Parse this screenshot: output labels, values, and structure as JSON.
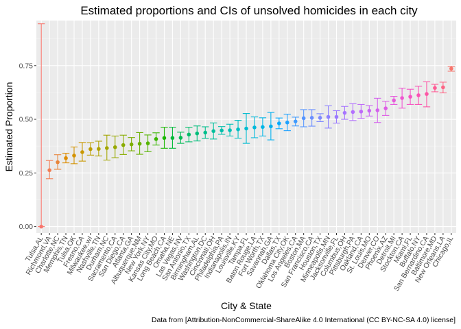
{
  "chart_data": {
    "type": "scatter",
    "title": "Estimated proportions and CIs of unsolved homicides in each city",
    "xlabel": "City & State",
    "ylabel": "Estimated Proportion",
    "caption": "Data from [Attribution-NonCommercial-ShareAlike 4.0 International (CC BY-NC-SA 4.0) license]",
    "ylim": [
      -0.03,
      0.96
    ],
    "yticks": [
      "0.00",
      "0.25",
      "0.50",
      "0.75"
    ],
    "ytick_values": [
      0,
      0.25,
      0.5,
      0.75
    ],
    "grid": true,
    "legend": "none",
    "points": [
      {
        "city": "Tulsa,AL",
        "estimate": 0.0,
        "low": 0.0,
        "high": 0.945,
        "color": "#F8766D"
      },
      {
        "city": "Richmond,VA",
        "estimate": 0.263,
        "low": 0.223,
        "high": 0.308,
        "color": "#F27D53"
      },
      {
        "city": "Charlotte,NC",
        "estimate": 0.3,
        "low": 0.267,
        "high": 0.335,
        "color": "#E8853A"
      },
      {
        "city": "Memphis,TN",
        "estimate": 0.319,
        "low": 0.297,
        "high": 0.342,
        "color": "#DE8C00"
      },
      {
        "city": "Tulsa,OK",
        "estimate": 0.331,
        "low": 0.293,
        "high": 0.371,
        "color": "#D39200"
      },
      {
        "city": "Fresno,CA",
        "estimate": 0.347,
        "low": 0.305,
        "high": 0.392,
        "color": "#C99800"
      },
      {
        "city": "Milwaukee,wI",
        "estimate": 0.361,
        "low": 0.333,
        "high": 0.391,
        "color": "#BC9D00"
      },
      {
        "city": "Nashville,TN",
        "estimate": 0.362,
        "low": 0.329,
        "high": 0.398,
        "color": "#B0A200"
      },
      {
        "city": "Durham,NC",
        "estimate": 0.366,
        "low": 0.31,
        "high": 0.426,
        "color": "#A3A500"
      },
      {
        "city": "Sacramento,CA",
        "estimate": 0.37,
        "low": 0.321,
        "high": 0.422,
        "color": "#97A800"
      },
      {
        "city": "San Diego,CA",
        "estimate": 0.38,
        "low": 0.336,
        "high": 0.426,
        "color": "#89AC00"
      },
      {
        "city": "Atlanta,GA",
        "estimate": 0.383,
        "low": 0.353,
        "high": 0.415,
        "color": "#7CAE00"
      },
      {
        "city": "Albuquerque,NM",
        "estimate": 0.386,
        "low": 0.337,
        "high": 0.438,
        "color": "#6AB100"
      },
      {
        "city": "New York,NY",
        "estimate": 0.388,
        "low": 0.349,
        "high": 0.427,
        "color": "#55B400"
      },
      {
        "city": "Kansas City,MO",
        "estimate": 0.408,
        "low": 0.38,
        "high": 0.437,
        "color": "#39B600"
      },
      {
        "city": "Long Beach,CA",
        "estimate": 0.413,
        "low": 0.365,
        "high": 0.463,
        "color": "#1AB800"
      },
      {
        "city": "Omaha,NE",
        "estimate": 0.413,
        "low": 0.365,
        "high": 0.463,
        "color": "#00BA38"
      },
      {
        "city": "Las Vegas,NV",
        "estimate": 0.414,
        "low": 0.388,
        "high": 0.44,
        "color": "#00BB52"
      },
      {
        "city": "San Antonio,TX",
        "estimate": 0.429,
        "low": 0.395,
        "high": 0.463,
        "color": "#00BC68"
      },
      {
        "city": "Birmingham,AL",
        "estimate": 0.434,
        "low": 0.399,
        "high": 0.469,
        "color": "#00BD7B"
      },
      {
        "city": "Washington,DC",
        "estimate": 0.438,
        "low": 0.411,
        "high": 0.465,
        "color": "#00BE8C"
      },
      {
        "city": "Cincinnati,OH",
        "estimate": 0.445,
        "low": 0.408,
        "high": 0.483,
        "color": "#00BF9C"
      },
      {
        "city": "Philadelphia,PA",
        "estimate": 0.448,
        "low": 0.43,
        "high": 0.466,
        "color": "#00BFAB"
      },
      {
        "city": "Indianapolis,IN",
        "estimate": 0.449,
        "low": 0.422,
        "high": 0.477,
        "color": "#00C0B8"
      },
      {
        "city": "Louisville,KY",
        "estimate": 0.453,
        "low": 0.412,
        "high": 0.495,
        "color": "#00BFC4"
      },
      {
        "city": "Tampa,FL",
        "estimate": 0.457,
        "low": 0.388,
        "high": 0.527,
        "color": "#00BCD0"
      },
      {
        "city": "Baton Rouge,LA",
        "estimate": 0.462,
        "low": 0.414,
        "high": 0.511,
        "color": "#00B9DB"
      },
      {
        "city": "Fort Worth,TX",
        "estimate": 0.464,
        "low": 0.422,
        "high": 0.507,
        "color": "#00B5E6"
      },
      {
        "city": "Savannah,GA",
        "estimate": 0.467,
        "low": 0.404,
        "high": 0.532,
        "color": "#00B0F0"
      },
      {
        "city": "Dallas,TX",
        "estimate": 0.481,
        "low": 0.456,
        "high": 0.506,
        "color": "#00A9FF"
      },
      {
        "city": "Oklahoma City,OK",
        "estimate": 0.485,
        "low": 0.447,
        "high": 0.524,
        "color": "#1FA2FF"
      },
      {
        "city": "Los Angeles,CA",
        "estimate": 0.49,
        "low": 0.469,
        "high": 0.51,
        "color": "#3F9BFF"
      },
      {
        "city": "Boston,MA",
        "estimate": 0.505,
        "low": 0.465,
        "high": 0.545,
        "color": "#5595FF"
      },
      {
        "city": "San Francisco,CA",
        "estimate": 0.507,
        "low": 0.468,
        "high": 0.545,
        "color": "#6A8EFF"
      },
      {
        "city": "Houston,TX",
        "estimate": 0.507,
        "low": 0.489,
        "high": 0.526,
        "color": "#7C88FF"
      },
      {
        "city": "Minneapolis,MN",
        "estimate": 0.511,
        "low": 0.459,
        "high": 0.563,
        "color": "#8D81FF"
      },
      {
        "city": "Jacksonville,FL",
        "estimate": 0.511,
        "low": 0.482,
        "high": 0.54,
        "color": "#9B7BFF"
      },
      {
        "city": "Columbus,OH",
        "estimate": 0.53,
        "low": 0.5,
        "high": 0.56,
        "color": "#A775FF"
      },
      {
        "city": "Pittsburgh,PA",
        "estimate": 0.534,
        "low": 0.494,
        "high": 0.573,
        "color": "#B26FFE"
      },
      {
        "city": "Oakland,CA",
        "estimate": 0.536,
        "low": 0.504,
        "high": 0.569,
        "color": "#BE6AF9"
      },
      {
        "city": "St. Louis,MO",
        "estimate": 0.54,
        "low": 0.515,
        "high": 0.564,
        "color": "#C966F5"
      },
      {
        "city": "Denver,CO",
        "estimate": 0.542,
        "low": 0.485,
        "high": 0.598,
        "color": "#D462ED"
      },
      {
        "city": "Phoenix,AZ",
        "estimate": 0.551,
        "low": 0.518,
        "high": 0.584,
        "color": "#DE5FE5"
      },
      {
        "city": "Detroit,MI",
        "estimate": 0.588,
        "low": 0.569,
        "high": 0.607,
        "color": "#E65ADB"
      },
      {
        "city": "Stockton,CA",
        "estimate": 0.599,
        "low": 0.552,
        "high": 0.645,
        "color": "#EF56D0"
      },
      {
        "city": "Miami,FL",
        "estimate": 0.605,
        "low": 0.569,
        "high": 0.64,
        "color": "#F653C3"
      },
      {
        "city": "Buffalo,NY",
        "estimate": 0.612,
        "low": 0.569,
        "high": 0.654,
        "color": "#FA52B5"
      },
      {
        "city": "San Bernardino,CA",
        "estimate": 0.618,
        "low": 0.558,
        "high": 0.675,
        "color": "#FD56A5"
      },
      {
        "city": "Baltimore,MD",
        "estimate": 0.646,
        "low": 0.628,
        "high": 0.663,
        "color": "#FE5C95"
      },
      {
        "city": "New Orleans,LA",
        "estimate": 0.649,
        "low": 0.623,
        "high": 0.673,
        "color": "#FD6585"
      },
      {
        "city": "Chicago,IL",
        "estimate": 0.736,
        "low": 0.724,
        "high": 0.747,
        "color": "#F8766D"
      }
    ]
  }
}
